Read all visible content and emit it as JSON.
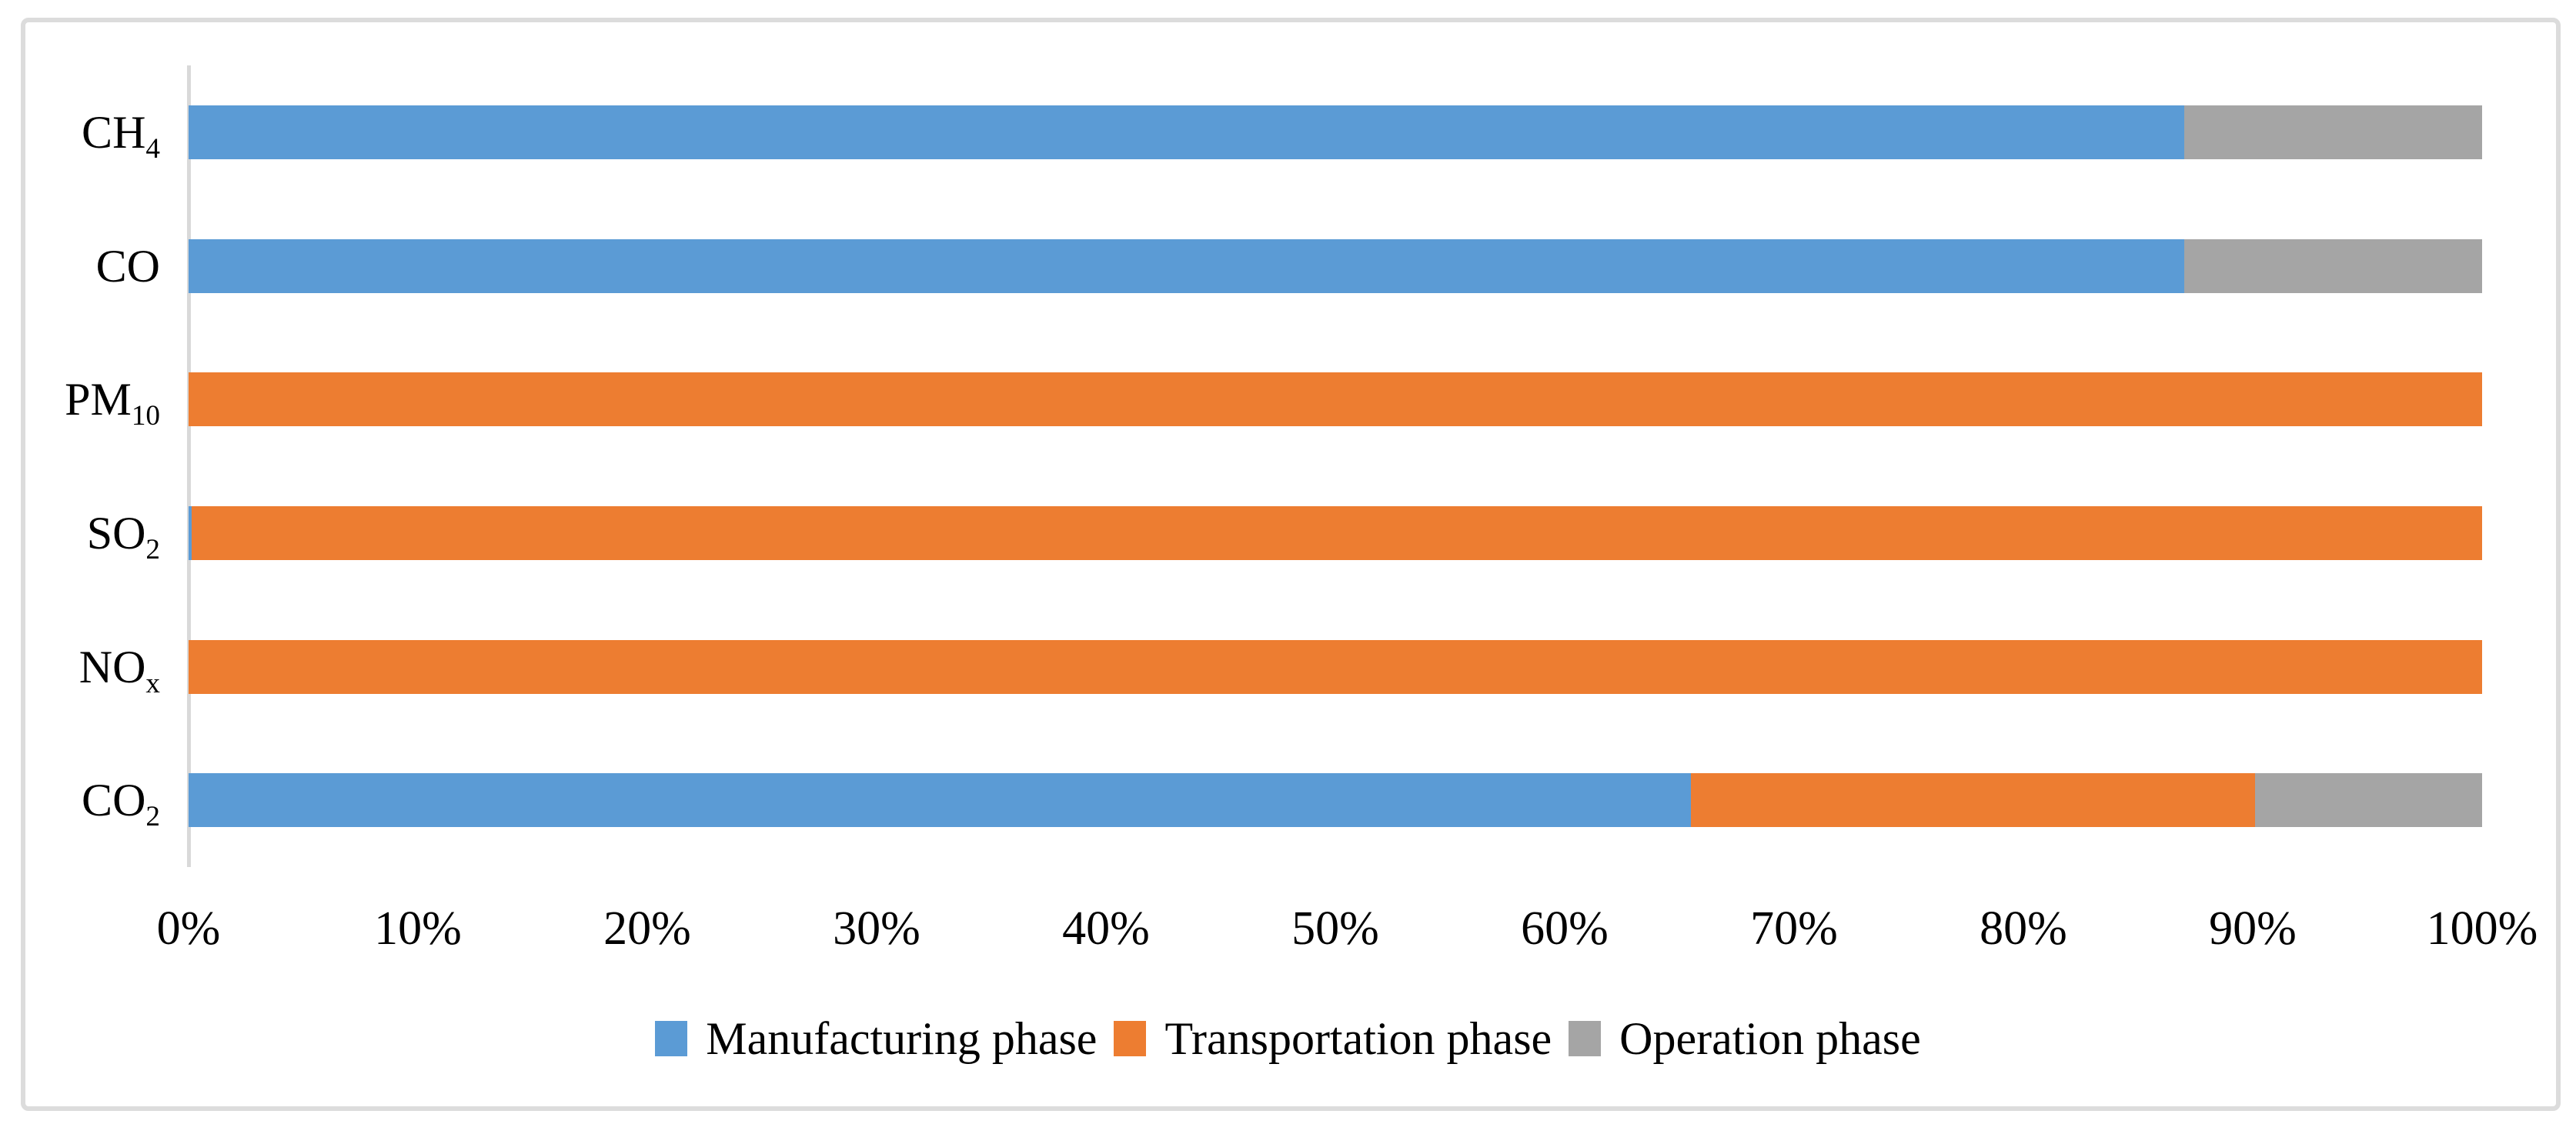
{
  "chart_data": {
    "type": "bar",
    "orientation": "horizontal",
    "stacked": true,
    "units": "%",
    "title": "",
    "xlabel": "",
    "ylabel": "",
    "grid": false,
    "legend_position": "bottom",
    "axis_color": "#D9D9D9",
    "categories": [
      {
        "name": "CH4",
        "base": "CH",
        "sub": "4"
      },
      {
        "name": "CO",
        "base": "CO",
        "sub": ""
      },
      {
        "name": "PM10",
        "base": "PM",
        "sub": "10"
      },
      {
        "name": "SO2",
        "base": "SO",
        "sub": "2"
      },
      {
        "name": "NOx",
        "base": "NO",
        "sub": "x"
      },
      {
        "name": "CO2",
        "base": "CO",
        "sub": "2"
      }
    ],
    "series": [
      {
        "name": "Manufacturing phase",
        "color": "#5B9BD5",
        "values": [
          87,
          87,
          0,
          0.15,
          0,
          65.5
        ]
      },
      {
        "name": "Transportation phase",
        "color": "#ED7D31",
        "values": [
          0,
          0,
          100,
          99.85,
          100,
          24.6
        ]
      },
      {
        "name": "Operation phase",
        "color": "#A5A5A5",
        "values": [
          13,
          13,
          0,
          0,
          0,
          9.9
        ]
      }
    ],
    "x_axis": {
      "min": 0,
      "max": 100,
      "tick_labels": [
        "0%",
        "10%",
        "20%",
        "30%",
        "40%",
        "50%",
        "60%",
        "70%",
        "80%",
        "90%",
        "100%"
      ]
    }
  }
}
